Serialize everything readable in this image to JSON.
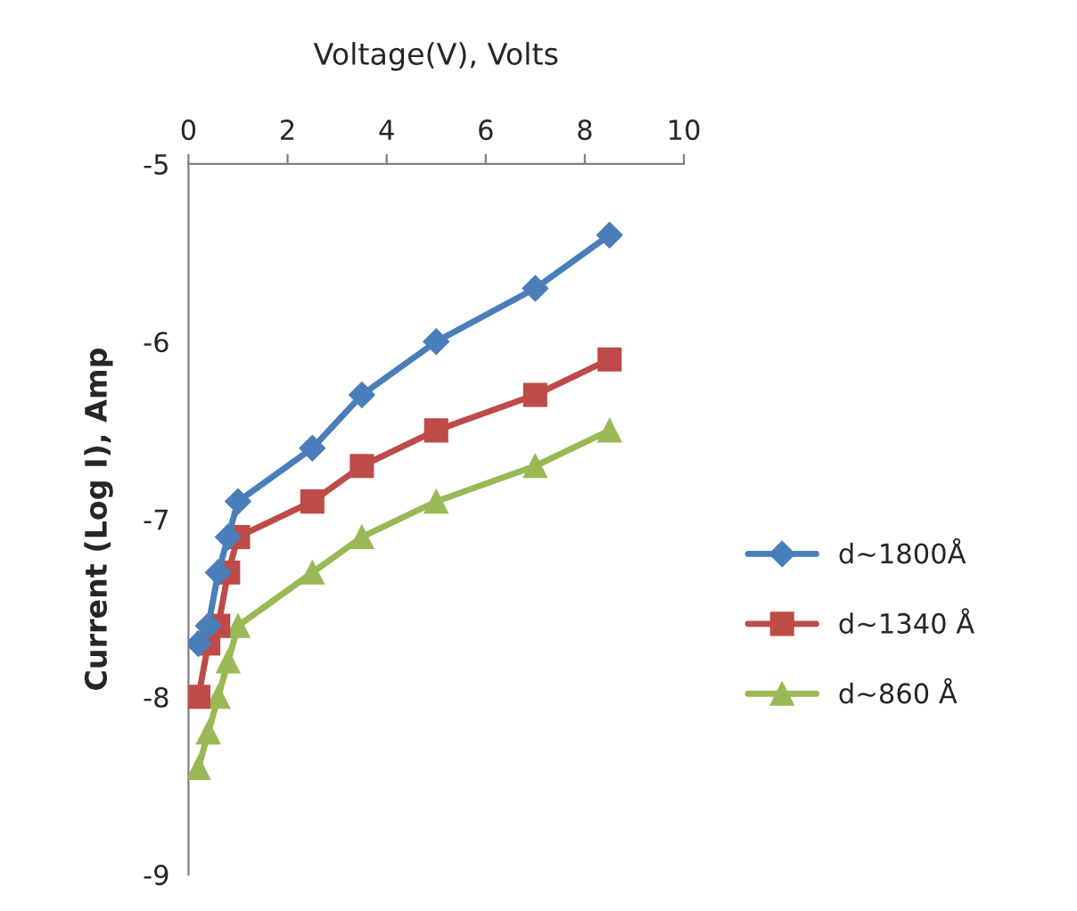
{
  "chart_data": {
    "type": "line",
    "xlabel": "Voltage(V), Volts",
    "ylabel": "Current (Log I), Amp",
    "xlim": [
      0,
      10
    ],
    "xticks": [
      0,
      2,
      4,
      6,
      8,
      10
    ],
    "ylim": [
      -9,
      -5
    ],
    "yticks": [
      -9,
      -8,
      -7,
      -6,
      -5
    ],
    "grid": false,
    "legend": "right",
    "series": [
      {
        "name": "d~1800Å",
        "color": "#4a7ebb",
        "marker": "diamond",
        "x": [
          0.2,
          0.4,
          0.6,
          0.8,
          1,
          2.5,
          3.5,
          5,
          7,
          8.5
        ],
        "values": [
          -7.7,
          -7.6,
          -7.3,
          -7.1,
          -6.9,
          -6.6,
          -6.3,
          -6.0,
          -5.7,
          -5.4
        ]
      },
      {
        "name": "d~1340 Å",
        "color": "#be4b48",
        "marker": "square",
        "x": [
          0.2,
          0.4,
          0.6,
          0.8,
          1,
          2.5,
          3.5,
          5,
          7,
          8.5
        ],
        "values": [
          -8.0,
          -7.7,
          -7.6,
          -7.3,
          -7.1,
          -6.9,
          -6.7,
          -6.5,
          -6.3,
          -6.1
        ]
      },
      {
        "name": "d~860 Å",
        "color": "#98b954",
        "marker": "triangle",
        "x": [
          0.2,
          0.4,
          0.6,
          0.8,
          1,
          2.5,
          3.5,
          5,
          7,
          8.5
        ],
        "values": [
          -8.4,
          -8.2,
          -8.0,
          -7.8,
          -7.6,
          -7.3,
          -7.1,
          -6.9,
          -6.7,
          -6.5
        ]
      }
    ]
  }
}
